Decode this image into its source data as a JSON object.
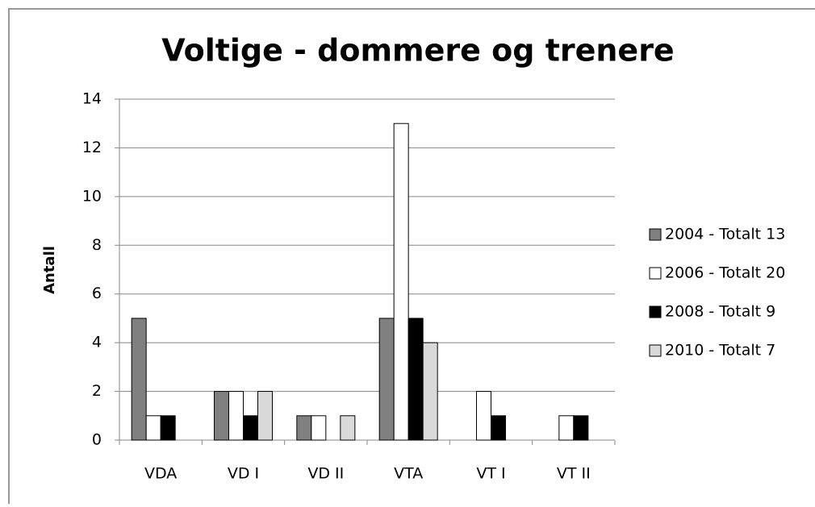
{
  "chart_data": {
    "type": "bar",
    "title": "Voltige - dommere og trenere",
    "ylabel": "Antall",
    "categories": [
      "VDA",
      "VD I",
      "VD II",
      "VTA",
      "VT I",
      "VT II"
    ],
    "series": [
      {
        "name": "2004 - Totalt 13",
        "color": "#808080",
        "values": [
          5,
          2,
          1,
          5,
          0,
          0
        ]
      },
      {
        "name": "2006 - Totalt 20",
        "color": "#ffffff",
        "values": [
          1,
          2,
          1,
          13,
          2,
          1
        ]
      },
      {
        "name": "2008 - Totalt 9",
        "color": "#000000",
        "values": [
          1,
          1,
          0,
          5,
          1,
          1
        ]
      },
      {
        "name": "2010 - Totalt 7",
        "color": "#d9d9d9",
        "values": [
          0,
          2,
          1,
          4,
          0,
          0
        ]
      }
    ],
    "ylim": [
      0,
      14
    ],
    "yticks": [
      0,
      2,
      4,
      6,
      8,
      10,
      12,
      14
    ],
    "grid": true,
    "legend": "right"
  }
}
